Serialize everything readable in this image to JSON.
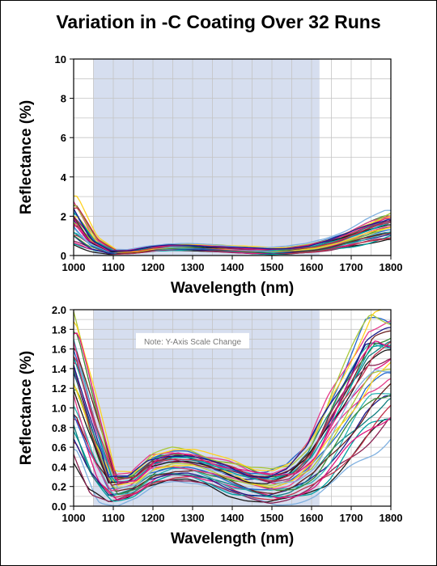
{
  "title": "Variation in -C Coating Over 32 Runs",
  "colors": {
    "band": "#d6deef",
    "grid": "#c4c4c4",
    "series_palette": [
      "#e0157f",
      "#1a1a8c",
      "#0f7f7f",
      "#2cb3b3",
      "#6a1f1f",
      "#3a8a3a",
      "#2266cc",
      "#e63b8a",
      "#a8c83a",
      "#ffd21f",
      "#7fb0e0",
      "#1a1a1a",
      "#8b2252",
      "#00a0a0",
      "#c0304a"
    ]
  },
  "chart_data": [
    {
      "type": "line",
      "xlabel": "Wavelength (nm)",
      "ylabel": "Reflectance (%)",
      "xlim": [
        1000,
        1800
      ],
      "ylim": [
        0,
        10
      ],
      "xticks": [
        1000,
        1100,
        1200,
        1300,
        1400,
        1500,
        1600,
        1700,
        1800
      ],
      "yticks": [
        0,
        2,
        4,
        6,
        8,
        10
      ],
      "highlight_band": [
        1050,
        1620
      ],
      "grid": true,
      "series_count": 32,
      "envelope": {
        "x": [
          1000,
          1050,
          1100,
          1150,
          1200,
          1250,
          1300,
          1350,
          1400,
          1450,
          1500,
          1550,
          1600,
          1650,
          1700,
          1750,
          1800
        ],
        "y_min": [
          0.5,
          0.2,
          0.05,
          0.1,
          0.2,
          0.25,
          0.25,
          0.2,
          0.15,
          0.08,
          0.05,
          0.08,
          0.15,
          0.25,
          0.4,
          0.6,
          0.8
        ],
        "y_max": [
          3.0,
          1.0,
          0.3,
          0.3,
          0.5,
          0.6,
          0.6,
          0.55,
          0.5,
          0.45,
          0.4,
          0.45,
          0.6,
          0.9,
          1.3,
          1.8,
          2.2
        ]
      }
    },
    {
      "type": "line",
      "xlabel": "Wavelength (nm)",
      "ylabel": "Reflectance (%)",
      "xlim": [
        1000,
        1800
      ],
      "ylim": [
        0,
        2.0
      ],
      "xticks": [
        1000,
        1100,
        1200,
        1300,
        1400,
        1500,
        1600,
        1700,
        1800
      ],
      "yticks": [
        0,
        0.2,
        0.4,
        0.6,
        0.8,
        1.0,
        1.2,
        1.4,
        1.6,
        1.8,
        2.0
      ],
      "ytick_labels": [
        "0.0",
        "0.2",
        "0.4",
        "0.6",
        "0.8",
        "1.0",
        "1.2",
        "1.4",
        "1.6",
        "1.8",
        "2.0"
      ],
      "highlight_band": [
        1050,
        1620
      ],
      "grid": true,
      "annotation": "Note: Y-Axis Scale Change",
      "series_count": 32,
      "envelope": {
        "x": [
          1000,
          1050,
          1100,
          1150,
          1200,
          1250,
          1300,
          1350,
          1400,
          1450,
          1500,
          1550,
          1600,
          1650,
          1700,
          1750,
          1800
        ],
        "y_min": [
          0.5,
          0.1,
          0.02,
          0.08,
          0.2,
          0.25,
          0.25,
          0.2,
          0.1,
          0.05,
          0.02,
          0.05,
          0.1,
          0.2,
          0.4,
          0.6,
          0.8
        ],
        "y_max": [
          2.0,
          1.2,
          0.35,
          0.35,
          0.55,
          0.6,
          0.58,
          0.52,
          0.48,
          0.4,
          0.38,
          0.45,
          0.7,
          1.2,
          1.6,
          2.0,
          2.0
        ]
      }
    }
  ]
}
